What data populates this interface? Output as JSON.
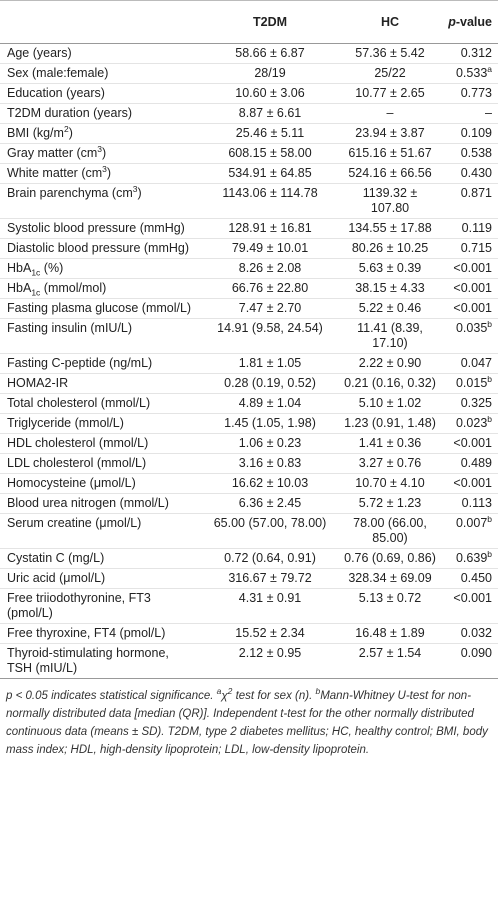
{
  "table": {
    "header": [
      "T2DM",
      "HC",
      [
        {
          "i": "p"
        },
        "-value"
      ]
    ],
    "rows": [
      [
        "Age (years)",
        "58.66 ± 6.87",
        "57.36 ± 5.42",
        "0.312"
      ],
      [
        "Sex (male:female)",
        "28/19",
        "25/22",
        [
          "0.533",
          {
            "sup": "a"
          }
        ]
      ],
      [
        "Education (years)",
        "10.60 ± 3.06",
        "10.77 ± 2.65",
        "0.773"
      ],
      [
        "T2DM duration (years)",
        "8.87 ± 6.61",
        "–",
        "–"
      ],
      [
        [
          "BMI (kg/m",
          {
            "sup": "2"
          },
          ")"
        ],
        "25.46 ± 5.11",
        "23.94 ± 3.87",
        "0.109"
      ],
      [
        [
          "Gray matter (cm",
          {
            "sup": "3"
          },
          ")"
        ],
        "608.15 ± 58.00",
        "615.16 ± 51.67",
        "0.538"
      ],
      [
        [
          "White matter (cm",
          {
            "sup": "3"
          },
          ")"
        ],
        "534.91 ± 64.85",
        "524.16 ± 66.56",
        "0.430"
      ],
      [
        [
          "Brain parenchyma (cm",
          {
            "sup": "3"
          },
          ")"
        ],
        "1143.06 ± 114.78",
        "1139.32 ± 107.80",
        "0.871"
      ],
      [
        "Systolic blood pressure (mmHg)",
        "128.91 ± 16.81",
        "134.55 ± 17.88",
        "0.119"
      ],
      [
        "Diastolic blood pressure (mmHg)",
        "79.49 ± 10.01",
        "80.26 ± 10.25",
        "0.715"
      ],
      [
        [
          "HbA",
          {
            "sub": "1c"
          },
          " (%)"
        ],
        "8.26 ± 2.08",
        "5.63 ± 0.39",
        "<0.001"
      ],
      [
        [
          "HbA",
          {
            "sub": "1c"
          },
          " (mmol/mol)"
        ],
        "66.76 ± 22.80",
        "38.15 ± 4.33",
        "<0.001"
      ],
      [
        "Fasting plasma glucose (mmol/L)",
        "7.47 ± 2.70",
        "5.22 ± 0.46",
        "<0.001"
      ],
      [
        "Fasting insulin (mIU/L)",
        "14.91 (9.58, 24.54)",
        "11.41 (8.39, 17.10)",
        [
          "0.035",
          {
            "sup": "b"
          }
        ]
      ],
      [
        "Fasting C-peptide (ng/mL)",
        "1.81 ± 1.05",
        "2.22 ± 0.90",
        "0.047"
      ],
      [
        "HOMA2-IR",
        "0.28 (0.19, 0.52)",
        "0.21 (0.16, 0.32)",
        [
          "0.015",
          {
            "sup": "b"
          }
        ]
      ],
      [
        "Total cholesterol (mmol/L)",
        "4.89 ± 1.04",
        "5.10 ± 1.02",
        "0.325"
      ],
      [
        "Triglyceride (mmol/L)",
        "1.45 (1.05, 1.98)",
        "1.23 (0.91, 1.48)",
        [
          "0.023",
          {
            "sup": "b"
          }
        ]
      ],
      [
        "HDL cholesterol (mmol/L)",
        "1.06 ± 0.23",
        "1.41 ± 0.36",
        "<0.001"
      ],
      [
        "LDL cholesterol (mmol/L)",
        "3.16 ± 0.83",
        "3.27 ± 0.76",
        "0.489"
      ],
      [
        "Homocysteine (μmol/L)",
        "16.62 ± 10.03",
        "10.70 ± 4.10",
        "<0.001"
      ],
      [
        "Blood urea nitrogen (mmol/L)",
        "6.36 ± 2.45",
        "5.72 ± 1.23",
        "0.113"
      ],
      [
        "Serum creatine (μmol/L)",
        "65.00 (57.00, 78.00)",
        "78.00 (66.00, 85.00)",
        [
          "0.007",
          {
            "sup": "b"
          }
        ]
      ],
      [
        "Cystatin C (mg/L)",
        "0.72 (0.64, 0.91)",
        "0.76 (0.69, 0.86)",
        [
          "0.639",
          {
            "sup": "b"
          }
        ]
      ],
      [
        "Uric acid (μmol/L)",
        "316.67 ± 79.72",
        "328.34 ± 69.09",
        "0.450"
      ],
      [
        "Free triiodothyronine, FT3 (pmol/L)",
        "4.31 ± 0.91",
        "5.13 ± 0.72",
        "<0.001"
      ],
      [
        "Free thyroxine, FT4 (pmol/L)",
        "15.52 ± 2.34",
        "16.48 ± 1.89",
        "0.032"
      ],
      [
        "Thyroid-stimulating hormone, TSH (mIU/L)",
        "2.12 ± 0.95",
        "2.57 ± 1.54",
        "0.090"
      ]
    ]
  },
  "footnote": [
    {
      "i": "p"
    },
    " < 0.05 indicates statistical significance. ",
    {
      "sup": "a"
    },
    "χ",
    {
      "sup": "2"
    },
    " test for sex (n). ",
    {
      "sup": "b"
    },
    "Mann-Whitney U-test for non-normally distributed data [median (QR)]. Independent t-test for the other normally distributed continuous data (means ± SD). T2DM, type 2 diabetes mellitus; HC, healthy control; BMI, body mass index; HDL, high-density lipoprotein; LDL, low-density lipoprotein."
  ]
}
